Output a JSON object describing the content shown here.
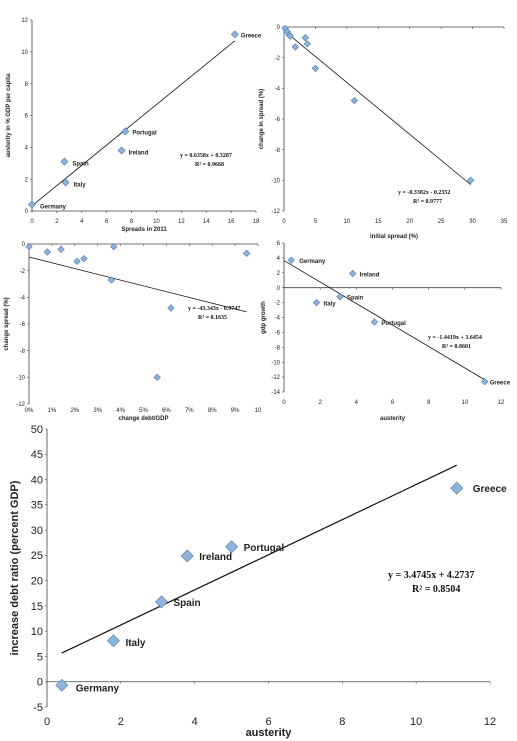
{
  "chart_data": [
    {
      "type": "scatter",
      "xlabel": "Spreads in 2011",
      "ylabel": "austerity in % GDP per capita",
      "xlim": [
        0,
        18
      ],
      "ylim": [
        0,
        12
      ],
      "xticks": [
        "0",
        "2",
        "4",
        "6",
        "8",
        "10",
        "12",
        "14",
        "16",
        "18"
      ],
      "yticks": [
        "0",
        "2",
        "4",
        "6",
        "8",
        "10",
        "12"
      ],
      "points": [
        {
          "x": 0.0,
          "y": 0.4,
          "label": "Germany"
        },
        {
          "x": 2.7,
          "y": 1.8,
          "label": "Italy"
        },
        {
          "x": 2.6,
          "y": 3.1,
          "label": "Spain"
        },
        {
          "x": 7.2,
          "y": 3.8,
          "label": "Ireland"
        },
        {
          "x": 7.5,
          "y": 5.0,
          "label": "Portugal"
        },
        {
          "x": 16.3,
          "y": 11.1,
          "label": "Greece"
        }
      ],
      "trend": {
        "slope": 0.6358,
        "intercept": 0.3287,
        "from": 0,
        "to": 16.3
      },
      "equation": "y = 0.6358x + 0.3287",
      "r2": "R² = 0.9668"
    },
    {
      "type": "scatter",
      "xlabel": "initial spread (%)",
      "ylabel": "change in spread (%)",
      "xlim": [
        0,
        35
      ],
      "ylim": [
        -12,
        0
      ],
      "xticks": [
        "0",
        "5",
        "10",
        "15",
        "20",
        "25",
        "30",
        "35"
      ],
      "yticks": [
        "0",
        "-2",
        "-4",
        "-6",
        "-8",
        "-10",
        "-12"
      ],
      "points": [
        {
          "x": 0.2,
          "y": -0.1
        },
        {
          "x": 0.5,
          "y": -0.3
        },
        {
          "x": 0.8,
          "y": -0.5
        },
        {
          "x": 1.0,
          "y": -0.6
        },
        {
          "x": 1.8,
          "y": -1.3
        },
        {
          "x": 3.4,
          "y": -0.7
        },
        {
          "x": 3.7,
          "y": -1.1
        },
        {
          "x": 5.0,
          "y": -2.7
        },
        {
          "x": 11.2,
          "y": -4.8
        },
        {
          "x": 29.7,
          "y": -10.0
        }
      ],
      "trend": {
        "slope": -0.3382,
        "intercept": -0.2352,
        "from": 0,
        "to": 29.7
      },
      "equation": "y = -0.3382x - 0.2352",
      "r2": "R² = 0.9777"
    },
    {
      "type": "scatter",
      "xlabel": "change debt/GDP",
      "ylabel": "change spread (%)",
      "xlim": [
        0,
        0.1
      ],
      "ylim": [
        -12,
        0
      ],
      "xticks": [
        "0%",
        "1%",
        "2%",
        "3%",
        "4%",
        "5%",
        "6%",
        "7%",
        "8%",
        "9%",
        "10"
      ],
      "yticks": [
        "0",
        "-2",
        "-4",
        "-6",
        "-8",
        "-10",
        "-12"
      ],
      "points": [
        {
          "x": 0.0,
          "y": -0.2
        },
        {
          "x": 0.008,
          "y": -0.6
        },
        {
          "x": 0.014,
          "y": -0.4
        },
        {
          "x": 0.021,
          "y": -1.3
        },
        {
          "x": 0.024,
          "y": -1.1
        },
        {
          "x": 0.036,
          "y": -2.7
        },
        {
          "x": 0.037,
          "y": -0.2
        },
        {
          "x": 0.056,
          "y": -10.0
        },
        {
          "x": 0.062,
          "y": -4.8
        },
        {
          "x": 0.095,
          "y": -0.7
        }
      ],
      "trend": {
        "slope": -43.343,
        "intercept": -0.9747,
        "from": 0,
        "to": 0.095
      },
      "equation": "y = -43.343x - 0.9747",
      "r2": "R² = 0.1635"
    },
    {
      "type": "scatter",
      "xlabel": "austerity",
      "ylabel": "gdp growth",
      "xlim": [
        0,
        12
      ],
      "ylim": [
        -14,
        6
      ],
      "xticks": [
        "0",
        "2",
        "4",
        "6",
        "8",
        "10",
        "12"
      ],
      "yticks": [
        "6",
        "4",
        "2",
        "0",
        "-2",
        "-4",
        "-6",
        "-8",
        "-10",
        "-12",
        "-14"
      ],
      "points": [
        {
          "x": 0.4,
          "y": 3.7,
          "label": "Germany"
        },
        {
          "x": 3.8,
          "y": 1.9,
          "label": "Ireland"
        },
        {
          "x": 3.1,
          "y": -1.2,
          "label": "Spain"
        },
        {
          "x": 1.8,
          "y": -2.0,
          "label": "Italy"
        },
        {
          "x": 5.0,
          "y": -4.6,
          "label": "Portugal"
        },
        {
          "x": 11.1,
          "y": -12.6,
          "label": "Greece"
        }
      ],
      "trend": {
        "slope": -1.4419,
        "intercept": 3.6454,
        "from": 0,
        "to": 11.1
      },
      "equation": "y = -1.4419x + 3.6454",
      "r2": "R² = 0.8601"
    },
    {
      "type": "scatter",
      "xlabel": "austerity",
      "ylabel": "increase debt ratio (percent GDP)",
      "xlim": [
        0,
        12
      ],
      "ylim": [
        -5,
        50
      ],
      "xticks": [
        "0",
        "2",
        "4",
        "6",
        "8",
        "10",
        "12"
      ],
      "yticks": [
        "50",
        "45",
        "40",
        "35",
        "30",
        "25",
        "20",
        "15",
        "10",
        "5",
        "0",
        "-5"
      ],
      "points": [
        {
          "x": 0.4,
          "y": -0.7,
          "label": "Germany"
        },
        {
          "x": 1.8,
          "y": 8.1,
          "label": "Italy"
        },
        {
          "x": 3.1,
          "y": 15.8,
          "label": "Spain"
        },
        {
          "x": 3.8,
          "y": 24.9,
          "label": "Ireland"
        },
        {
          "x": 5.0,
          "y": 26.7,
          "label": "Portugal"
        },
        {
          "x": 11.1,
          "y": 38.3,
          "label": "Greece"
        }
      ],
      "trend": {
        "slope": 3.4745,
        "intercept": 4.2737,
        "from": 0.4,
        "to": 11.1
      },
      "equation": "y = 3.4745x + 4.2737",
      "r2": "R² = 0.8504"
    }
  ]
}
